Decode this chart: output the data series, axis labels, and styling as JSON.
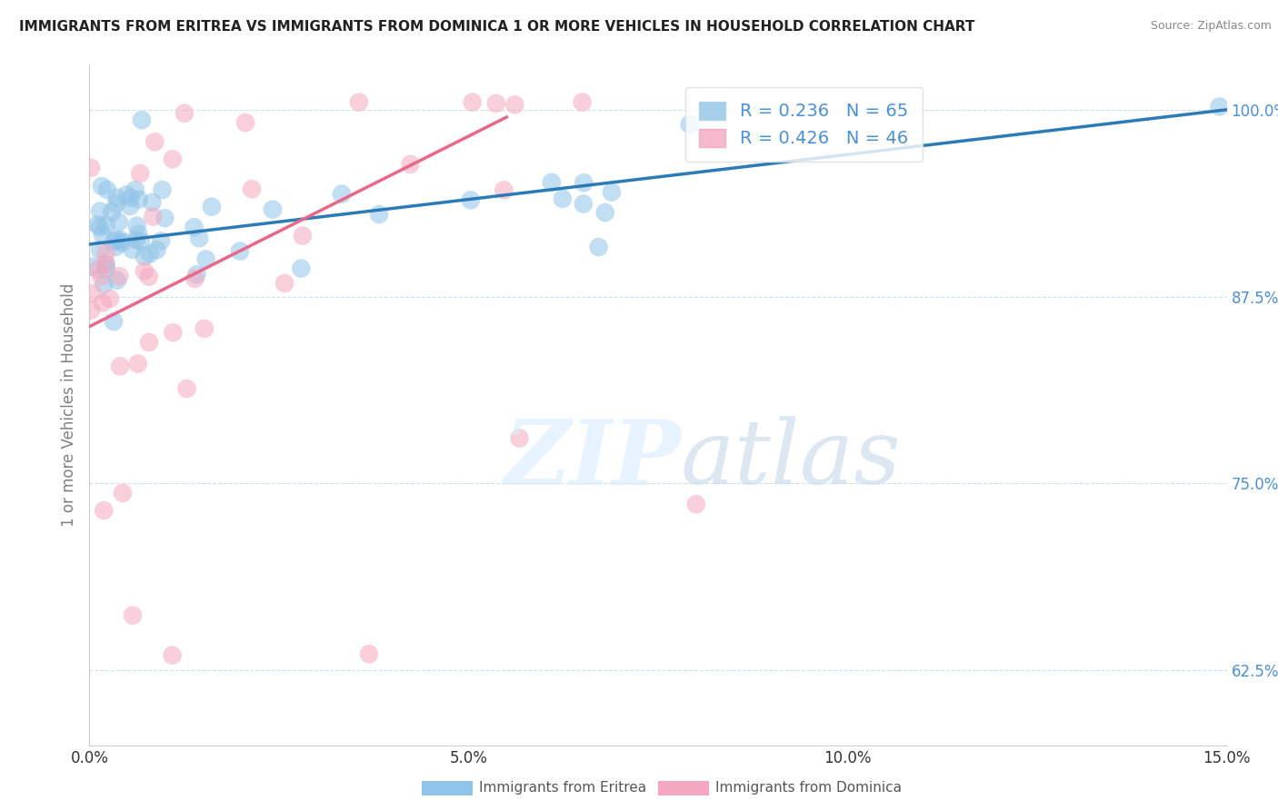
{
  "title": "IMMIGRANTS FROM ERITREA VS IMMIGRANTS FROM DOMINICA 1 OR MORE VEHICLES IN HOUSEHOLD CORRELATION CHART",
  "source": "Source: ZipAtlas.com",
  "ylabel": "1 or more Vehicles in Household",
  "xmin": 0.0,
  "xmax": 0.15,
  "ymin": 0.575,
  "ymax": 1.03,
  "yticks": [
    0.625,
    0.75,
    0.875,
    1.0
  ],
  "ytick_labels": [
    "62.5%",
    "75.0%",
    "87.5%",
    "100.0%"
  ],
  "xticks": [
    0.0,
    0.05,
    0.1,
    0.15
  ],
  "xtick_labels": [
    "0.0%",
    "5.0%",
    "10.0%",
    "15.0%"
  ],
  "legend_labels": [
    "Immigrants from Eritrea",
    "Immigrants from Dominica"
  ],
  "legend_R": [
    0.236,
    0.426
  ],
  "legend_N": [
    65,
    46
  ],
  "blue_color": "#90c4e8",
  "pink_color": "#f4a8bf",
  "blue_line_color": "#2c7bb6",
  "pink_line_color": "#e8688a",
  "tick_color": "#4a90d9",
  "blue_line_x0": 0.0,
  "blue_line_y0": 0.91,
  "blue_line_x1": 0.15,
  "blue_line_y1": 1.0,
  "pink_line_x0": 0.0,
  "pink_line_y0": 0.855,
  "pink_line_x1": 0.055,
  "pink_line_y1": 0.995
}
